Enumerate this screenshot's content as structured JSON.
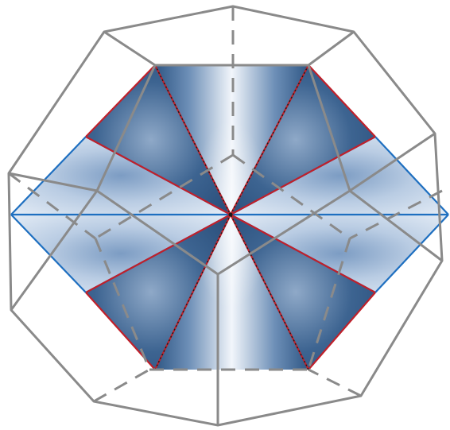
{
  "diagram": {
    "colors": {
      "background": "#ffffff",
      "frame": "#8a8a8a",
      "dark_fill": "#2f5785",
      "light_fill": "#dfe9f5",
      "red_edge": "#c0202a",
      "blue_edge": "#1e6fc0",
      "dotted_edge": "#1a1a1a"
    }
  }
}
